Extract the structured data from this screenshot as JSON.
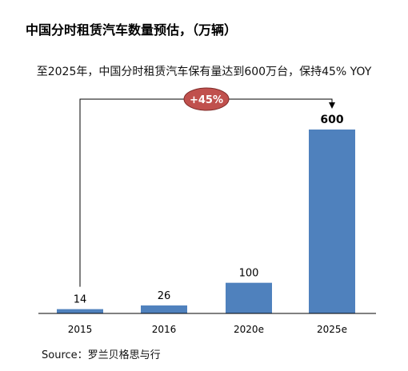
{
  "header": {
    "title": "中国分时租赁汽车数量预估，（万辆）",
    "subtitle": "至2025年，中国分时租赁汽车保有量达到600万台，保持45% YOY"
  },
  "footer": {
    "source": "Source：罗兰贝格思与行"
  },
  "colors": {
    "bar": "#4F81BD",
    "badge": "#C0504D",
    "axis": "#000000"
  },
  "chart_data": {
    "type": "bar",
    "categories": [
      "2015",
      "2016",
      "2020e",
      "2025e"
    ],
    "values": [
      14,
      26,
      100,
      600
    ],
    "data_labels": [
      "14",
      "26",
      "100",
      "600"
    ],
    "title": "中国分时租赁汽车数量预估，（万辆）",
    "xlabel": "",
    "ylabel": "",
    "ylim": [
      0,
      600
    ],
    "grid": false,
    "annotation": {
      "text": "+45%",
      "from": "2015",
      "to": "2025e"
    }
  }
}
